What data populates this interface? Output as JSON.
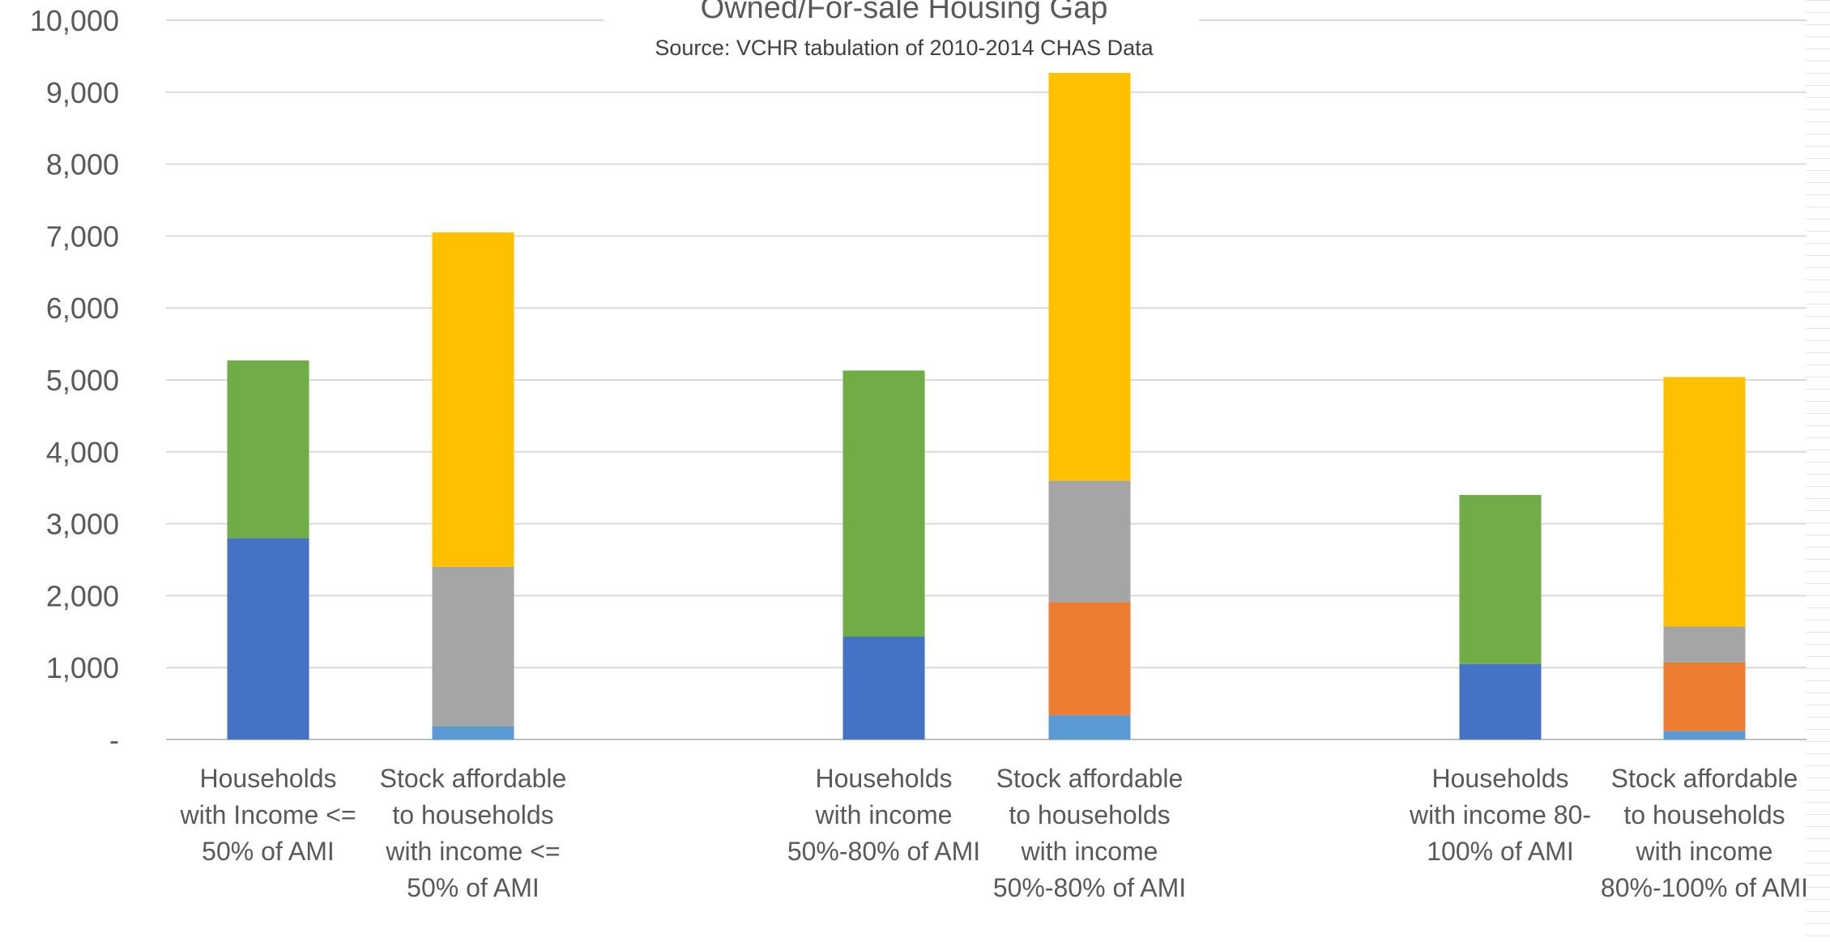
{
  "chart_data": {
    "type": "bar",
    "stacked": true,
    "title": "Owned/For-sale Housing Gap",
    "subtitle": "Source: VCHR tabulation of 2010-2014 CHAS Data",
    "ylim": [
      0,
      10000
    ],
    "y_ticks": [
      "-",
      "1,000",
      "2,000",
      "3,000",
      "4,000",
      "5,000",
      "6,000",
      "7,000",
      "8,000",
      "9,000",
      "10,000"
    ],
    "grid": true,
    "legend": "none",
    "colors": {
      "blue": "#4472c4",
      "green": "#70ad47",
      "lightblue": "#5b9bd5",
      "orange": "#ed7d31",
      "gray": "#a5a5a5",
      "gold": "#ffc000"
    },
    "categories": [
      "Households with Income <= 50% of AMI",
      "Stock affordable to households with income <= 50% of AMI",
      "Households with income 50%-80% of AMI",
      "Stock affordable to households with income 50%-80% of AMI",
      "Households with income 80-100% of AMI",
      "Stock affordable to households with income 80%-100% of AMI"
    ],
    "category_label_lines": [
      [
        "Households",
        "with Income <=",
        "50% of AMI"
      ],
      [
        "Stock affordable",
        "to households",
        "with income <=",
        "50% of AMI"
      ],
      [
        "Households",
        "with income",
        "50%-80% of AMI"
      ],
      [
        "Stock affordable",
        "to households",
        "with income",
        "50%-80% of AMI"
      ],
      [
        "Households",
        "with income 80-",
        "100% of AMI"
      ],
      [
        "Stock affordable",
        "to households",
        "with income",
        "80%-100% of AMI"
      ]
    ],
    "series": [
      {
        "color": "blue",
        "values": [
          2800,
          0,
          1430,
          0,
          1050,
          0
        ]
      },
      {
        "color": "green",
        "values": [
          2470,
          0,
          3700,
          0,
          2350,
          0
        ]
      },
      {
        "color": "lightblue",
        "values": [
          0,
          180,
          0,
          340,
          0,
          120
        ]
      },
      {
        "color": "orange",
        "values": [
          0,
          0,
          0,
          1570,
          0,
          950
        ]
      },
      {
        "color": "gray",
        "values": [
          0,
          2220,
          0,
          1690,
          0,
          500
        ]
      },
      {
        "color": "gold",
        "values": [
          0,
          4650,
          0,
          5700,
          0,
          3470
        ]
      }
    ]
  }
}
